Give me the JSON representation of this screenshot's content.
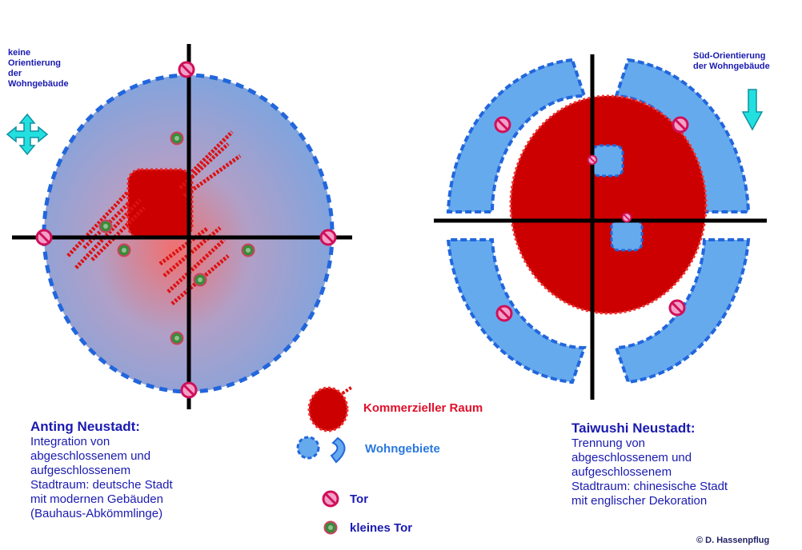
{
  "colors": {
    "commercial_red": "#cc0000",
    "residential_blue": "#66aaee",
    "residential_stroke": "#2266dd",
    "axis_black": "#000000",
    "gate_magenta": "#d0105a",
    "small_gate_green": "#3a8a3a",
    "text_navy": "#1a1ab0",
    "arrow_cyan": "#22e0e0"
  },
  "left": {
    "orientation_label": [
      "keine",
      "Orientierung",
      "der",
      "Wohngebäude"
    ],
    "arrow_icon": "four-way-arrow-icon",
    "title": "Anting Neustadt:",
    "description": [
      "Integration von",
      "abgeschlossenem und",
      "aufgeschlossenem",
      "Stadtraum: deutsche Stadt",
      "mit modernen Gebäuden",
      "(Bauhaus-Abkömmlinge)"
    ]
  },
  "right": {
    "orientation_label": [
      "Süd-Orientierung",
      "der Wohngebäude"
    ],
    "arrow_icon": "down-arrow-icon",
    "title": "Taiwushi Neustadt:",
    "description": [
      "Trennung von",
      "abgeschlossenem und",
      "aufgeschlossenem",
      "Stadtraum: chinesische Stadt",
      "mit englischer Dekoration"
    ]
  },
  "legend": {
    "commercial": "Kommerzieller Raum",
    "residential": "Wohngebiete",
    "gate": "Tor",
    "small_gate": "kleines Tor"
  },
  "copyright": "© D. Hassenpflug"
}
